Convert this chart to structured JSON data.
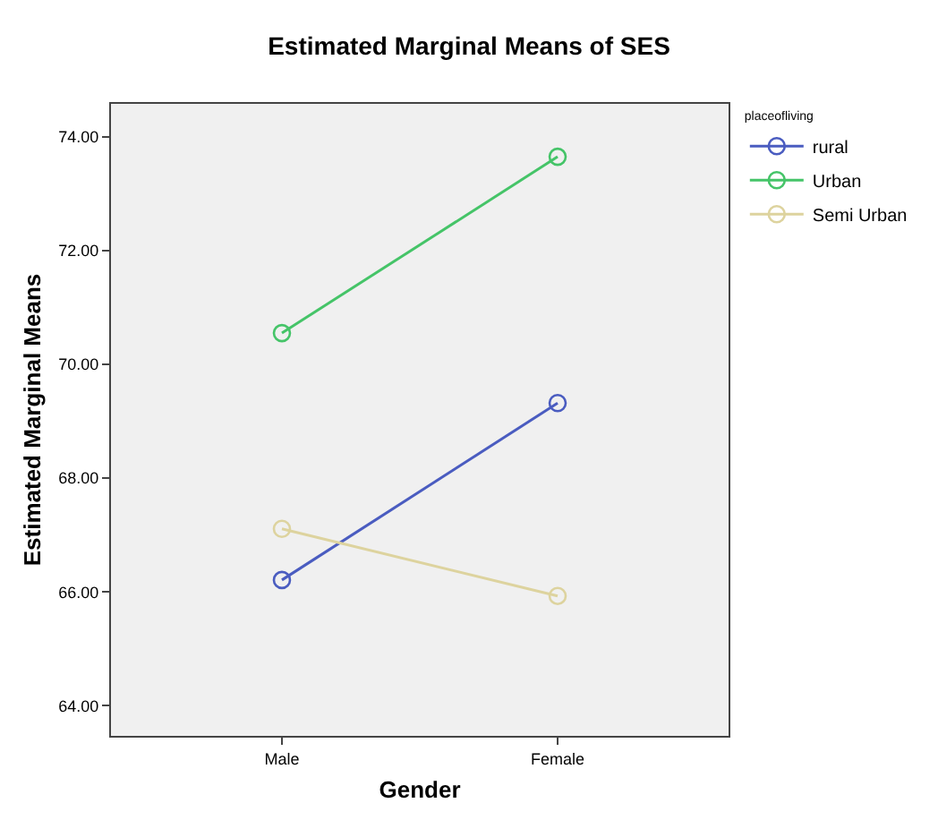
{
  "chart_data": {
    "type": "line",
    "title": "Estimated Marginal Means of SES",
    "xlabel": "Gender",
    "ylabel": "Estimated Marginal Means",
    "legend_title": "placeofliving",
    "categories": [
      "Male",
      "Female"
    ],
    "series": [
      {
        "name": "rural",
        "color": "#4a5cc0",
        "values": [
          66.21,
          69.32
        ]
      },
      {
        "name": "Urban",
        "color": "#45c468",
        "values": [
          70.55,
          73.65
        ]
      },
      {
        "name": "Semi Urban",
        "color": "#ddd39e",
        "values": [
          67.11,
          65.93
        ]
      }
    ],
    "ylim": [
      63.47,
      74.58
    ],
    "yticks": [
      {
        "value": 64,
        "label": "64.00"
      },
      {
        "value": 66,
        "label": "66.00"
      },
      {
        "value": 68,
        "label": "68.00"
      },
      {
        "value": 70,
        "label": "70.00"
      },
      {
        "value": 72,
        "label": "72.00"
      },
      {
        "value": 74,
        "label": "74.00"
      }
    ],
    "grid": false,
    "legend": "top right",
    "marker": "circle",
    "line_style": "solid"
  }
}
